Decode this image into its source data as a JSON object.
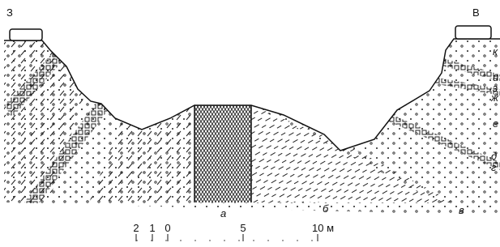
{
  "directions": {
    "west": "З",
    "east": "В"
  },
  "units": [
    {
      "label": "а"
    },
    {
      "label": "б"
    },
    {
      "label": "в"
    }
  ],
  "layers": [
    "к",
    "и",
    "з",
    "ж",
    "е",
    "д",
    "г"
  ],
  "scale": {
    "ticks": [
      "2",
      "1",
      "0",
      "5",
      "10 м"
    ]
  }
}
